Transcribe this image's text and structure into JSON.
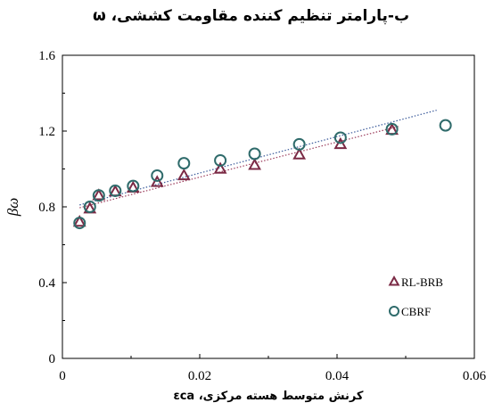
{
  "chart_data": {
    "type": "scatter",
    "title": "ب-پارامتر تنظیم کننده مقاومت کششی، ω",
    "xlabel": "کرنش متوسط هسته مرکزی، εca",
    "ylabel": "βω",
    "xlim": [
      0,
      0.06
    ],
    "ylim": [
      0,
      1.6
    ],
    "xticks": [
      "0",
      "0.02",
      "0.04",
      "0.06"
    ],
    "xtick_values": [
      0,
      0.02,
      0.04,
      0.06
    ],
    "yticks": [
      "0",
      "0.4",
      "0.8",
      "1.2",
      "1.6"
    ],
    "ytick_values": [
      0,
      0.4,
      0.8,
      1.2,
      1.6
    ],
    "grid": false,
    "legend_position": "bottom-right",
    "series": [
      {
        "name": "RL-BRB",
        "marker": "triangle",
        "color": "#7b2a45",
        "points": [
          [
            0.0025,
            0.72
          ],
          [
            0.004,
            0.79
          ],
          [
            0.0053,
            0.86
          ],
          [
            0.0077,
            0.88
          ],
          [
            0.0103,
            0.9
          ],
          [
            0.0138,
            0.93
          ],
          [
            0.0177,
            0.965
          ],
          [
            0.023,
            1.0
          ],
          [
            0.028,
            1.02
          ],
          [
            0.0345,
            1.075
          ],
          [
            0.0405,
            1.13
          ],
          [
            0.048,
            1.205
          ]
        ],
        "trend": [
          [
            0.0025,
            0.795
          ],
          [
            0.049,
            1.225
          ]
        ],
        "trend_color": "#9b3a5a"
      },
      {
        "name": "CBRF",
        "marker": "circle",
        "color": "#2f6b6b",
        "points": [
          [
            0.0025,
            0.715
          ],
          [
            0.004,
            0.8
          ],
          [
            0.0053,
            0.86
          ],
          [
            0.0077,
            0.885
          ],
          [
            0.0103,
            0.91
          ],
          [
            0.0138,
            0.965
          ],
          [
            0.0177,
            1.03
          ],
          [
            0.023,
            1.045
          ],
          [
            0.028,
            1.08
          ],
          [
            0.0345,
            1.13
          ],
          [
            0.0405,
            1.165
          ],
          [
            0.048,
            1.21
          ],
          [
            0.0558,
            1.23
          ]
        ],
        "trend": [
          [
            0.0025,
            0.81
          ],
          [
            0.0545,
            1.31
          ]
        ],
        "trend_color": "#3a5a9a"
      }
    ]
  }
}
